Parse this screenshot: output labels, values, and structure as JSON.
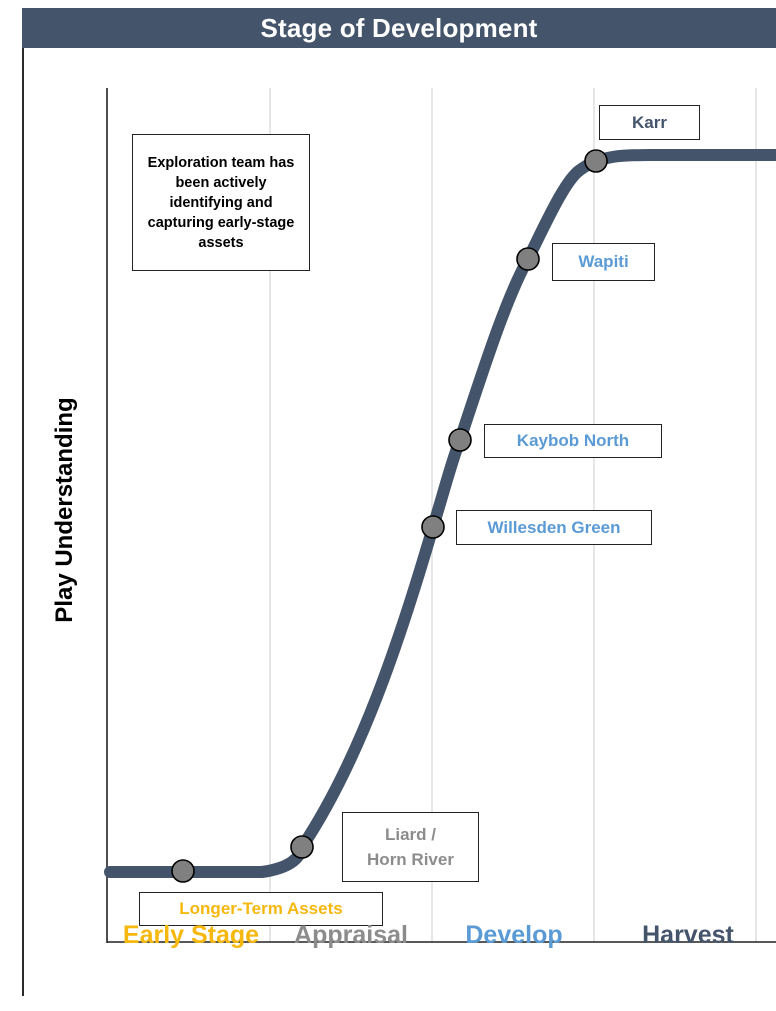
{
  "header": {
    "title": "Stage of Development"
  },
  "y_axis_label": "Play Understanding",
  "note": "Exploration team has been actively identifying and capturing early-stage assets",
  "stages": [
    {
      "label": "Early Stage",
      "color": "#F6B80E"
    },
    {
      "label": "Appraisal",
      "color": "#8C8C8C"
    },
    {
      "label": "Develop",
      "color": "#5B9BD5"
    },
    {
      "label": "Harvest",
      "color": "#44546A"
    }
  ],
  "assets": [
    {
      "label": "Longer-Term Assets",
      "color": "#F6B80E"
    },
    {
      "label_line1": "Liard /",
      "label_line2": "Horn River",
      "color": "#8C8C8C"
    },
    {
      "label": "Willesden Green",
      "color": "#5B9BD5"
    },
    {
      "label": "Kaybob North",
      "color": "#5B9BD5"
    },
    {
      "label": "Wapiti",
      "color": "#5B9BD5"
    },
    {
      "label": "Karr",
      "color": "#44546A"
    }
  ],
  "colors": {
    "header_bg": "#44546A",
    "curve": "#44546A",
    "marker_fill": "#808080",
    "gridline": "#D9D9D9"
  }
}
